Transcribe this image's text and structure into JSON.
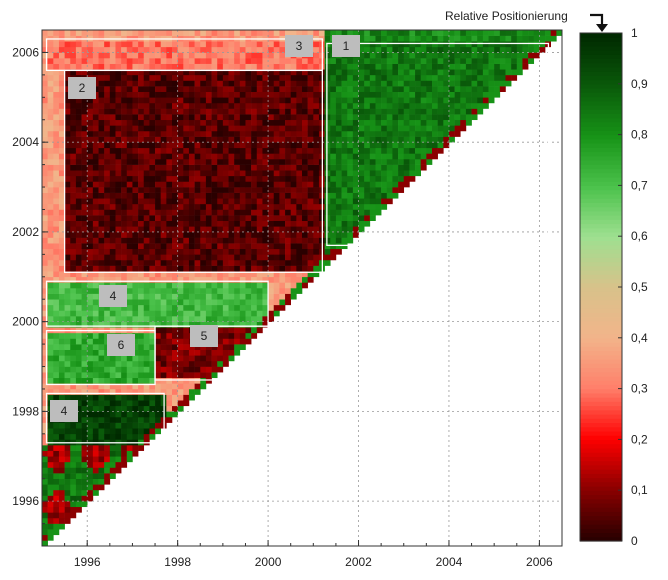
{
  "chart_data": {
    "type": "heatmap",
    "title": "",
    "xlabel": "",
    "ylabel": "",
    "xlim": [
      1995.0,
      2006.5
    ],
    "ylim": [
      1995.0,
      2006.5
    ],
    "x_ticks": [
      1996,
      1998,
      2000,
      2002,
      2004,
      2006
    ],
    "y_ticks": [
      1996,
      1998,
      2000,
      2002,
      2004,
      2006
    ],
    "grid": "dotted",
    "shape": "lower-triangular above diagonal (cells exist where y >= x)",
    "colorbar": {
      "label": "Relative Positionierung",
      "range": [
        0,
        1
      ],
      "ticks": [
        "0",
        "0,1",
        "0,2",
        "0,3",
        "0,4",
        "0,5",
        "0,6",
        "0,7",
        "0,8",
        "0,9",
        "1"
      ],
      "colors": [
        "#2a0000",
        "#8b0000",
        "#ff0000",
        "#ff7f6a",
        "#f2b48a",
        "#d8c28a",
        "#9ee090",
        "#4bc24b",
        "#179317",
        "#0a5a0a",
        "#002a00"
      ]
    },
    "regions": [
      {
        "label": "1",
        "x": [
          2001.3,
          2006.2
        ],
        "y": [
          2001.7,
          2006.2
        ],
        "level": 0.85
      },
      {
        "label": "2",
        "x": [
          1995.5,
          2001.2
        ],
        "y": [
          2001.1,
          2005.6
        ],
        "level": 0.05
      },
      {
        "label": "3",
        "x": [
          1995.1,
          2001.2
        ],
        "y": [
          2005.6,
          2006.3
        ],
        "level": 0.3
      },
      {
        "label": "4",
        "x": [
          1995.1,
          2000.0
        ],
        "y": [
          1999.9,
          2000.9
        ],
        "level": 0.72
      },
      {
        "label": "5",
        "x": [
          1997.5,
          2000.0
        ],
        "y": [
          1998.7,
          1999.9
        ],
        "level": 0.08
      },
      {
        "label": "6",
        "x": [
          1995.1,
          1997.5
        ],
        "y": [
          1998.6,
          1999.8
        ],
        "level": 0.75
      },
      {
        "label": "4",
        "x": [
          1995.1,
          1997.7
        ],
        "y": [
          1997.3,
          1998.4
        ],
        "level": 0.95
      }
    ]
  }
}
